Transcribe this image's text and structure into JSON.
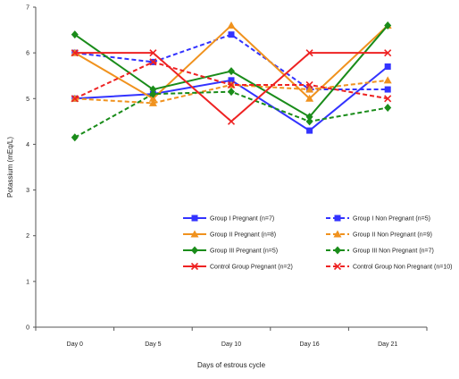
{
  "chart_data": {
    "type": "line",
    "title": "",
    "xlabel": "Days of estrous cycle",
    "ylabel": "Potassium (mEq/L)",
    "categories": [
      "Day 0",
      "Day 5",
      "Day 10",
      "Day 16",
      "Day 21"
    ],
    "ylim": [
      0,
      7
    ],
    "yticks": [
      "0",
      "1",
      "2",
      "3",
      "4",
      "5",
      "6",
      "7"
    ],
    "grid": false,
    "legend_position": "bottom-right",
    "series": [
      {
        "name": "Group I Pregnant (n=7)",
        "values": [
          5.0,
          5.1,
          5.4,
          4.3,
          5.7
        ],
        "color": "#3333ff",
        "dash": "solid",
        "marker": "square"
      },
      {
        "name": "Group I Non Pregnant (n=5)",
        "values": [
          6.0,
          5.8,
          6.4,
          5.2,
          5.2
        ],
        "color": "#3333ff",
        "dash": "dashed",
        "marker": "square"
      },
      {
        "name": "Group II Pregnant (n=8)",
        "values": [
          6.0,
          5.0,
          6.6,
          5.0,
          6.6
        ],
        "color": "#f0921e",
        "dash": "solid",
        "marker": "triangle"
      },
      {
        "name": "Group II Non Pregnant (n=9)",
        "values": [
          5.0,
          4.9,
          5.3,
          5.2,
          5.4
        ],
        "color": "#f0921e",
        "dash": "dashed",
        "marker": "triangle"
      },
      {
        "name": "Group III Pregnant (n=5)",
        "values": [
          6.4,
          5.2,
          5.6,
          4.6,
          6.6
        ],
        "color": "#1a8c1a",
        "dash": "solid",
        "marker": "diamond"
      },
      {
        "name": "Group III Non Pregnant (n=7)",
        "values": [
          4.15,
          5.1,
          5.15,
          4.5,
          4.8
        ],
        "color": "#1a8c1a",
        "dash": "dashed",
        "marker": "diamond"
      },
      {
        "name": "Control Group Pregnant (n=2)",
        "values": [
          6.0,
          6.0,
          4.5,
          6.0,
          6.0
        ],
        "color": "#ee2222",
        "dash": "solid",
        "marker": "cross"
      },
      {
        "name": "Control Group Non Pregnant (n=10)",
        "values": [
          5.0,
          5.8,
          5.3,
          5.3,
          5.0
        ],
        "color": "#ee2222",
        "dash": "dashed",
        "marker": "cross"
      }
    ]
  }
}
